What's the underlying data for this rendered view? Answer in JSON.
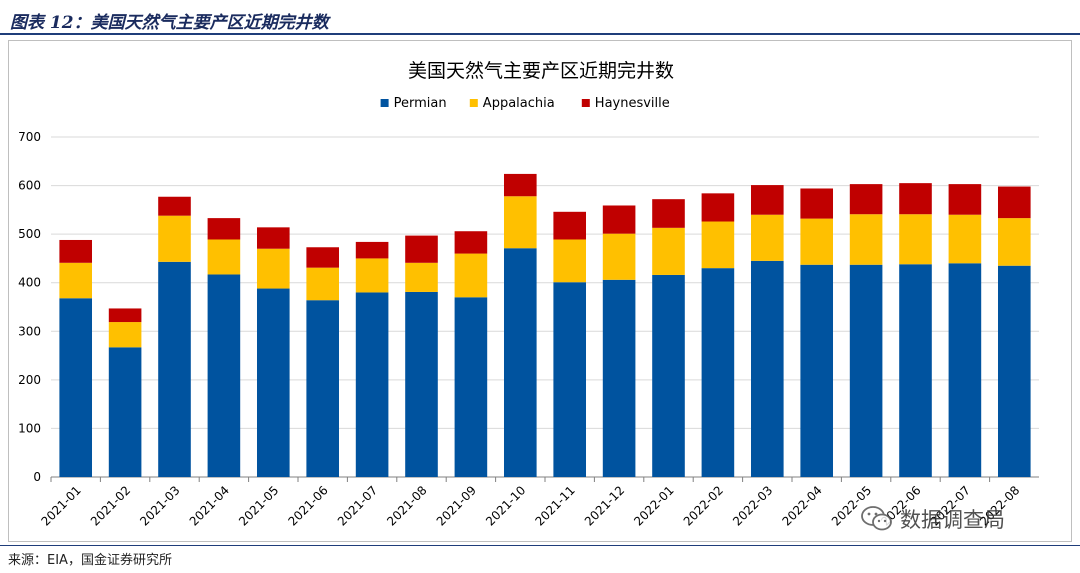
{
  "figure_title": "图表 12：美国天然气主要产区近期完井数",
  "source_text": "来源：EIA，国金证券研究所",
  "watermark_text": "数据调查局",
  "watermark_icon": "wechat-icon",
  "colors": {
    "Permian": "#00539f",
    "Appalachia": "#ffc000",
    "Haynesville": "#c00000",
    "grid": "#d9d9d9",
    "axis": "#808080",
    "title_accent": "#1a2b5e"
  },
  "chart_data": {
    "type": "bar",
    "stacked": true,
    "title": "美国天然气主要产区近期完井数",
    "xlabel": "",
    "ylabel": "",
    "ylim": [
      0,
      700
    ],
    "yticks": [
      0,
      100,
      200,
      300,
      400,
      500,
      600,
      700
    ],
    "grid": true,
    "legend_position": "top-center",
    "categories": [
      "2021-01",
      "2021-02",
      "2021-03",
      "2021-04",
      "2021-05",
      "2021-06",
      "2021-07",
      "2021-08",
      "2021-09",
      "2021-10",
      "2021-11",
      "2021-12",
      "2022-01",
      "2022-02",
      "2022-03",
      "2022-04",
      "2022-05",
      "2022-06",
      "2022-07",
      "2022-08"
    ],
    "series": [
      {
        "name": "Permian",
        "values": [
          368,
          267,
          443,
          417,
          388,
          364,
          380,
          381,
          370,
          471,
          401,
          406,
          416,
          430,
          445,
          437,
          437,
          438,
          440,
          435
        ]
      },
      {
        "name": "Appalachia",
        "values": [
          73,
          52,
          95,
          72,
          82,
          67,
          70,
          60,
          90,
          107,
          88,
          95,
          97,
          96,
          95,
          95,
          104,
          103,
          100,
          98
        ]
      },
      {
        "name": "Haynesville",
        "values": [
          47,
          28,
          39,
          44,
          44,
          42,
          34,
          56,
          46,
          46,
          57,
          58,
          59,
          58,
          61,
          62,
          62,
          64,
          63,
          65
        ]
      }
    ]
  }
}
